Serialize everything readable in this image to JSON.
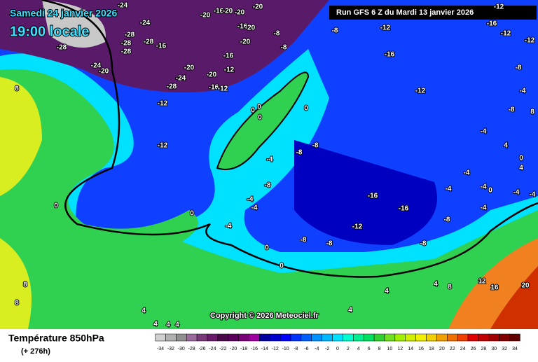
{
  "header": {
    "date": "Samedi 24 janvier 2026",
    "time": "19:00 locale",
    "run": "Run GFS 6 Z du Mardi 13 janvier 2026"
  },
  "copyright": "Copyright © 2026 Meteociel.fr",
  "footer": {
    "title": "Température 850hPa",
    "lead": "(+ 276h)"
  },
  "legend": {
    "values": [
      -34,
      -32,
      -30,
      -28,
      -26,
      -24,
      -22,
      -20,
      -18,
      -16,
      -14,
      -12,
      -10,
      -8,
      -6,
      -4,
      -2,
      0,
      2,
      4,
      6,
      8,
      10,
      12,
      14,
      16,
      18,
      20,
      22,
      24,
      26,
      28,
      30,
      32,
      34
    ],
    "colors": [
      "#d0d0d0",
      "#b0b0b0",
      "#909090",
      "#9a6a9a",
      "#7a3a7a",
      "#6a1a6a",
      "#4a0a4a",
      "#5a005a",
      "#7a007a",
      "#a000a0",
      "#0000a0",
      "#0000d0",
      "#0000ff",
      "#0033ff",
      "#0060ff",
      "#0090ff",
      "#00b8ff",
      "#00e0ff",
      "#00ffd0",
      "#00f090",
      "#00e060",
      "#30d030",
      "#70e020",
      "#a0f000",
      "#d0f000",
      "#f0f000",
      "#f0d000",
      "#f0a000",
      "#f07000",
      "#f04000",
      "#e00000",
      "#c00000",
      "#a00000",
      "#800000",
      "#600000"
    ]
  },
  "contour_labels": [
    -24,
    -20,
    -16,
    -20,
    -20,
    -20,
    -24,
    -28,
    -28,
    -28,
    -28,
    -28,
    -16,
    -16,
    -20,
    -20,
    -16,
    -24,
    -20,
    -20,
    -20,
    -24,
    -28,
    -16,
    -12,
    -12,
    -12,
    -12,
    -8,
    -8,
    -8,
    -12,
    -16,
    -12,
    -12,
    -12,
    -16,
    -12,
    -8,
    -4,
    -8,
    -4,
    0,
    0,
    0,
    0,
    -4,
    -8,
    -8,
    -8,
    -16,
    -16,
    -12,
    -4,
    -4,
    -4,
    0,
    0,
    0,
    -8,
    -8,
    -8,
    -8,
    -4,
    -4,
    -4,
    -4,
    0,
    4,
    4,
    0,
    -4,
    -4,
    0,
    4,
    4,
    8,
    12,
    16,
    20,
    8,
    8,
    4,
    4,
    4,
    4,
    8,
    4,
    8
  ]
}
